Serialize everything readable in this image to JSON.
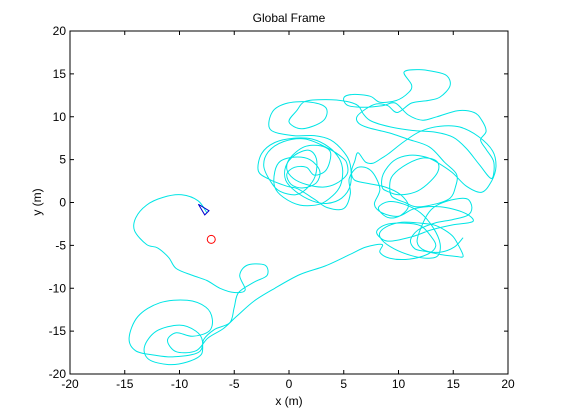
{
  "chart_data": {
    "type": "line",
    "title": "Global Frame",
    "xlabel": "x (m)",
    "ylabel": "y (m)",
    "xlim": [
      -20,
      20
    ],
    "ylim": [
      -20,
      20
    ],
    "xticks": [
      -20,
      -15,
      -10,
      -5,
      0,
      5,
      10,
      15,
      20
    ],
    "yticks": [
      -20,
      -15,
      -10,
      -5,
      0,
      5,
      10,
      15,
      20
    ],
    "x_tick_labels": [
      "-20",
      "-15",
      "-10",
      "-5",
      "0",
      "5",
      "10",
      "15",
      "20"
    ],
    "y_tick_labels": [
      "-20",
      "-15",
      "-10",
      "-5",
      "0",
      "5",
      "10",
      "15",
      "20"
    ],
    "grid": false,
    "colors": {
      "trajectory": "#00e5e5",
      "robot": "#0000cc",
      "marker": "#ff0000",
      "axes": "#000000",
      "background": "#ffffff"
    },
    "series": [
      {
        "values": [
          [
            -7.5,
            -1.2
          ],
          [
            -8.3,
            0.2
          ],
          [
            -9.8,
            0.9
          ],
          [
            -11.5,
            0.6
          ],
          [
            -13,
            -0.3
          ],
          [
            -14,
            -1.8
          ],
          [
            -14.1,
            -3.3
          ],
          [
            -13,
            -4.9
          ],
          [
            -12,
            -5.3
          ],
          [
            -11,
            -6.4
          ],
          [
            -10.3,
            -7.7
          ],
          [
            -8.8,
            -8.5
          ],
          [
            -7.5,
            -9.1
          ],
          [
            -6.3,
            -10
          ],
          [
            -5,
            -10.5
          ],
          [
            -4,
            -10.2
          ],
          [
            -4.5,
            -8.5
          ],
          [
            -3.8,
            -7.3
          ],
          [
            -2.2,
            -7.3
          ],
          [
            -2,
            -8.5
          ],
          [
            -3.2,
            -9.3
          ],
          [
            -4.6,
            -10.5
          ],
          [
            -5,
            -12.2
          ],
          [
            -5.4,
            -14
          ],
          [
            -6.8,
            -14.8
          ],
          [
            -7.8,
            -16
          ],
          [
            -8,
            -17.7
          ],
          [
            -9.3,
            -18.6
          ],
          [
            -11,
            -18.9
          ],
          [
            -12.8,
            -18.3
          ],
          [
            -13.2,
            -16.8
          ],
          [
            -12.1,
            -15
          ],
          [
            -10,
            -14.3
          ],
          [
            -8.5,
            -15
          ],
          [
            -7.9,
            -16.2
          ],
          [
            -8.3,
            -17.5
          ],
          [
            -10.5,
            -18
          ],
          [
            -12.3,
            -17.8
          ],
          [
            -14,
            -17.3
          ],
          [
            -14.6,
            -15.8
          ],
          [
            -13.8,
            -13.3
          ],
          [
            -11.8,
            -11.7
          ],
          [
            -9.3,
            -11.4
          ],
          [
            -7.6,
            -12.2
          ],
          [
            -7,
            -13.6
          ],
          [
            -7.3,
            -15
          ],
          [
            -8.8,
            -15.6
          ],
          [
            -10.3,
            -15.2
          ],
          [
            -11.1,
            -16.1
          ],
          [
            -10.3,
            -17.4
          ],
          [
            -8.5,
            -17.3
          ],
          [
            -7.4,
            -15.8
          ],
          [
            -6,
            -14.7
          ],
          [
            -4.8,
            -13.3
          ],
          [
            -3.2,
            -11.5
          ],
          [
            -1.3,
            -10
          ],
          [
            1,
            -8.4
          ],
          [
            3.3,
            -7.4
          ],
          [
            5.5,
            -6.1
          ],
          [
            7,
            -5.2
          ],
          [
            8.5,
            -4.9
          ],
          [
            8.3,
            -5.8
          ],
          [
            9.2,
            -6.5
          ],
          [
            11,
            -6.6
          ],
          [
            12.7,
            -6
          ],
          [
            13.4,
            -5.1
          ],
          [
            13,
            -4
          ],
          [
            12,
            -2.7
          ],
          [
            10.5,
            -2.4
          ],
          [
            8.8,
            -2.6
          ],
          [
            8,
            -3.5
          ],
          [
            9,
            -4.5
          ],
          [
            11.2,
            -4
          ],
          [
            13,
            -3.2
          ],
          [
            15,
            -2.6
          ],
          [
            16.8,
            -2.2
          ],
          [
            16,
            -1.2
          ],
          [
            13.8,
            -0.5
          ],
          [
            11.5,
            -0.7
          ],
          [
            10,
            -1.6
          ],
          [
            8.5,
            -1.2
          ],
          [
            7.8,
            -0.2
          ],
          [
            8.3,
            1.6
          ],
          [
            7.5,
            3.7
          ],
          [
            6.3,
            4.1
          ],
          [
            5.5,
            2.8
          ],
          [
            5.6,
            1
          ],
          [
            5,
            -0.7
          ],
          [
            3.5,
            -0.6
          ],
          [
            2.3,
            0.4
          ],
          [
            0.8,
            1.6
          ],
          [
            -0.2,
            1.9
          ],
          [
            -1.8,
            2.7
          ],
          [
            -2.8,
            3.7
          ],
          [
            -2.5,
            5.7
          ],
          [
            -1.3,
            7
          ],
          [
            0.4,
            7.5
          ],
          [
            2.1,
            7.4
          ],
          [
            3.6,
            6.5
          ],
          [
            4.6,
            5.1
          ],
          [
            4.9,
            3.7
          ],
          [
            4.7,
            2
          ],
          [
            4,
            0.8
          ],
          [
            2.8,
            -0.2
          ],
          [
            1,
            -0.3
          ],
          [
            -0.5,
            0.6
          ],
          [
            -1.3,
            1.8
          ],
          [
            -1.3,
            3.6
          ],
          [
            -0.8,
            4.8
          ],
          [
            0.5,
            5.3
          ],
          [
            1.9,
            5
          ],
          [
            2.8,
            3.7
          ],
          [
            2.5,
            2.3
          ],
          [
            1.3,
            1.7
          ],
          [
            0.2,
            2.1
          ],
          [
            -0.2,
            3.3
          ],
          [
            0.5,
            4.1
          ],
          [
            1.6,
            4.1
          ],
          [
            2.3,
            3.2
          ],
          [
            3.4,
            3.8
          ],
          [
            3.8,
            5.8
          ],
          [
            2.9,
            6.6
          ],
          [
            1.4,
            6.5
          ],
          [
            0.1,
            5.2
          ],
          [
            -0.2,
            3.9
          ],
          [
            0.4,
            2.8
          ],
          [
            1.6,
            2.1
          ],
          [
            3.1,
            1.8
          ],
          [
            4.3,
            2.2
          ],
          [
            5.3,
            3.3
          ],
          [
            5.3,
            4.5
          ],
          [
            4.9,
            5.2
          ],
          [
            3.6,
            6.3
          ],
          [
            1.5,
            7.4
          ],
          [
            -0.5,
            7.1
          ],
          [
            -1.9,
            5.9
          ],
          [
            -2.3,
            4.2
          ],
          [
            -1.6,
            2.3
          ],
          [
            -0.8,
            1.3
          ],
          [
            0.6,
            0.9
          ],
          [
            1.6,
            1.6
          ],
          [
            2.4,
            3.1
          ],
          [
            2.5,
            5.1
          ],
          [
            1.8,
            6.1
          ],
          [
            0.5,
            5.5
          ],
          [
            -0.3,
            4.2
          ],
          [
            -0.3,
            2.6
          ],
          [
            0.6,
            1.3
          ],
          [
            2.1,
            0.2
          ],
          [
            3.5,
            -0.1
          ],
          [
            4.8,
            0.5
          ],
          [
            5.6,
            2
          ],
          [
            5.6,
            4.4
          ],
          [
            5,
            5.9
          ],
          [
            3.8,
            7.3
          ],
          [
            2.3,
            7.8
          ],
          [
            0.4,
            7.8
          ],
          [
            -1.7,
            8.5
          ],
          [
            -1.5,
            10.6
          ],
          [
            -0.1,
            11.6
          ],
          [
            2,
            11.7
          ],
          [
            3.4,
            11
          ],
          [
            3.1,
            9.5
          ],
          [
            1.2,
            8.6
          ],
          [
            0,
            9.4
          ],
          [
            0.7,
            10.7
          ],
          [
            1.5,
            11.8
          ],
          [
            3.4,
            12
          ],
          [
            5.2,
            11.8
          ],
          [
            6.3,
            11.3
          ],
          [
            6.8,
            10.3
          ],
          [
            7.5,
            9.5
          ],
          [
            9.3,
            8.8
          ],
          [
            11.3,
            8.4
          ],
          [
            13.4,
            8.2
          ],
          [
            15,
            7.6
          ],
          [
            16.2,
            6.3
          ],
          [
            17.4,
            4.4
          ],
          [
            18.5,
            2.8
          ],
          [
            18.7,
            4.7
          ],
          [
            18,
            6.2
          ],
          [
            17.5,
            7.3
          ],
          [
            18,
            8.3
          ],
          [
            17.6,
            9.6
          ],
          [
            16.9,
            10.5
          ],
          [
            15.4,
            10.7
          ],
          [
            13.5,
            10
          ],
          [
            12.2,
            9.6
          ],
          [
            10.9,
            10.2
          ],
          [
            9.7,
            11.6
          ],
          [
            8.6,
            11.3
          ],
          [
            7,
            11.1
          ],
          [
            5.4,
            11.3
          ],
          [
            5,
            12.2
          ],
          [
            5.8,
            12.6
          ],
          [
            7.4,
            12.4
          ],
          [
            8.3,
            11.7
          ],
          [
            9.8,
            11.9
          ],
          [
            10.9,
            12.8
          ],
          [
            11.2,
            13.7
          ],
          [
            10.5,
            15.2
          ],
          [
            11.8,
            15.5
          ],
          [
            13.1,
            15.3
          ],
          [
            14.4,
            14.8
          ],
          [
            14.7,
            13.6
          ],
          [
            13.8,
            12.3
          ],
          [
            12.7,
            11.9
          ],
          [
            11.2,
            11.6
          ],
          [
            9.9,
            10.5
          ],
          [
            9,
            11.3
          ],
          [
            8,
            11.5
          ],
          [
            7,
            10.9
          ],
          [
            6.2,
            10
          ],
          [
            6.4,
            9.2
          ],
          [
            7.3,
            8.7
          ],
          [
            9.2,
            8.1
          ],
          [
            10.8,
            7.4
          ],
          [
            12.8,
            6.5
          ],
          [
            14.2,
            4.7
          ],
          [
            15.3,
            3.3
          ],
          [
            15.2,
            1.8
          ],
          [
            14.7,
            0.5
          ],
          [
            13.3,
            -0.2
          ],
          [
            11.6,
            -0.5
          ],
          [
            10.6,
            0
          ],
          [
            9.4,
            0.7
          ],
          [
            9.2,
            2
          ],
          [
            9.5,
            3.2
          ],
          [
            10.8,
            4.5
          ],
          [
            12.3,
            5.2
          ],
          [
            13.5,
            4.8
          ],
          [
            13.6,
            3.6
          ],
          [
            12.6,
            2.1
          ],
          [
            11.5,
            1.2
          ],
          [
            10,
            0.9
          ],
          [
            9,
            1.3
          ],
          [
            8.5,
            1.8
          ],
          [
            8.6,
            3.3
          ],
          [
            9.6,
            4.9
          ],
          [
            11,
            5.5
          ],
          [
            12.5,
            5.3
          ],
          [
            13.5,
            4.7
          ],
          [
            14.9,
            3.5
          ],
          [
            16.2,
            1.9
          ],
          [
            17.6,
            1.2
          ],
          [
            18.5,
            2.5
          ],
          [
            18.9,
            4.2
          ],
          [
            18.6,
            6
          ],
          [
            17.3,
            7.7
          ],
          [
            15.6,
            8.8
          ],
          [
            13.8,
            8.9
          ],
          [
            12,
            8.3
          ],
          [
            10.5,
            7.1
          ],
          [
            9.1,
            5.7
          ],
          [
            8.5,
            5.2
          ],
          [
            7.7,
            4.6
          ],
          [
            7,
            4.7
          ],
          [
            6.3,
            5.8
          ],
          [
            6,
            4.8
          ],
          [
            5.7,
            3.6
          ],
          [
            6,
            2.6
          ],
          [
            7.3,
            2.2
          ],
          [
            8.8,
            1.8
          ],
          [
            10.2,
            0.9
          ],
          [
            10.9,
            -0.4
          ],
          [
            10.2,
            -1.5
          ],
          [
            9.2,
            -1.8
          ],
          [
            8.4,
            -1.2
          ],
          [
            8.2,
            -0.5
          ],
          [
            9.1,
            0.1
          ],
          [
            10.5,
            -0.2
          ],
          [
            12,
            -1.2
          ],
          [
            13.2,
            -3
          ],
          [
            13.8,
            -4.8
          ],
          [
            13.6,
            -6.2
          ],
          [
            12.6,
            -6.5
          ],
          [
            11.2,
            -6.2
          ],
          [
            9.6,
            -5.4
          ],
          [
            8.5,
            -4.4
          ],
          [
            8.3,
            -3.5
          ],
          [
            9.1,
            -2.7
          ],
          [
            10.3,
            -2.3
          ],
          [
            12,
            -2.4
          ],
          [
            13.2,
            -2.6
          ],
          [
            14.2,
            -3.2
          ],
          [
            15,
            -4
          ],
          [
            15.6,
            -5.3
          ],
          [
            15.9,
            -6.3
          ],
          [
            15.3,
            -6.3
          ],
          [
            14,
            -6.1
          ],
          [
            12.5,
            -5.7
          ],
          [
            11.5,
            -5.4
          ],
          [
            11.1,
            -4.4
          ],
          [
            11.8,
            -3.2
          ],
          [
            13.3,
            -2.4
          ],
          [
            14.9,
            -2
          ],
          [
            16.3,
            -1.5
          ],
          [
            16.7,
            -0.6
          ],
          [
            16.3,
            0.4
          ],
          [
            15.2,
            0.4
          ],
          [
            13.7,
            -0.2
          ],
          [
            12.8,
            -1.1
          ],
          [
            12.1,
            -2.8
          ],
          [
            11.7,
            -4.6
          ],
          [
            12.4,
            -5.6
          ],
          [
            13.8,
            -5.8
          ],
          [
            15.1,
            -5.2
          ],
          [
            15.9,
            -4.1
          ]
        ]
      }
    ],
    "robot_pose": {
      "x": -7.5,
      "y": -1.2,
      "heading_deg": 135
    },
    "marker_point": {
      "x": -7.1,
      "y": -4.3
    }
  }
}
